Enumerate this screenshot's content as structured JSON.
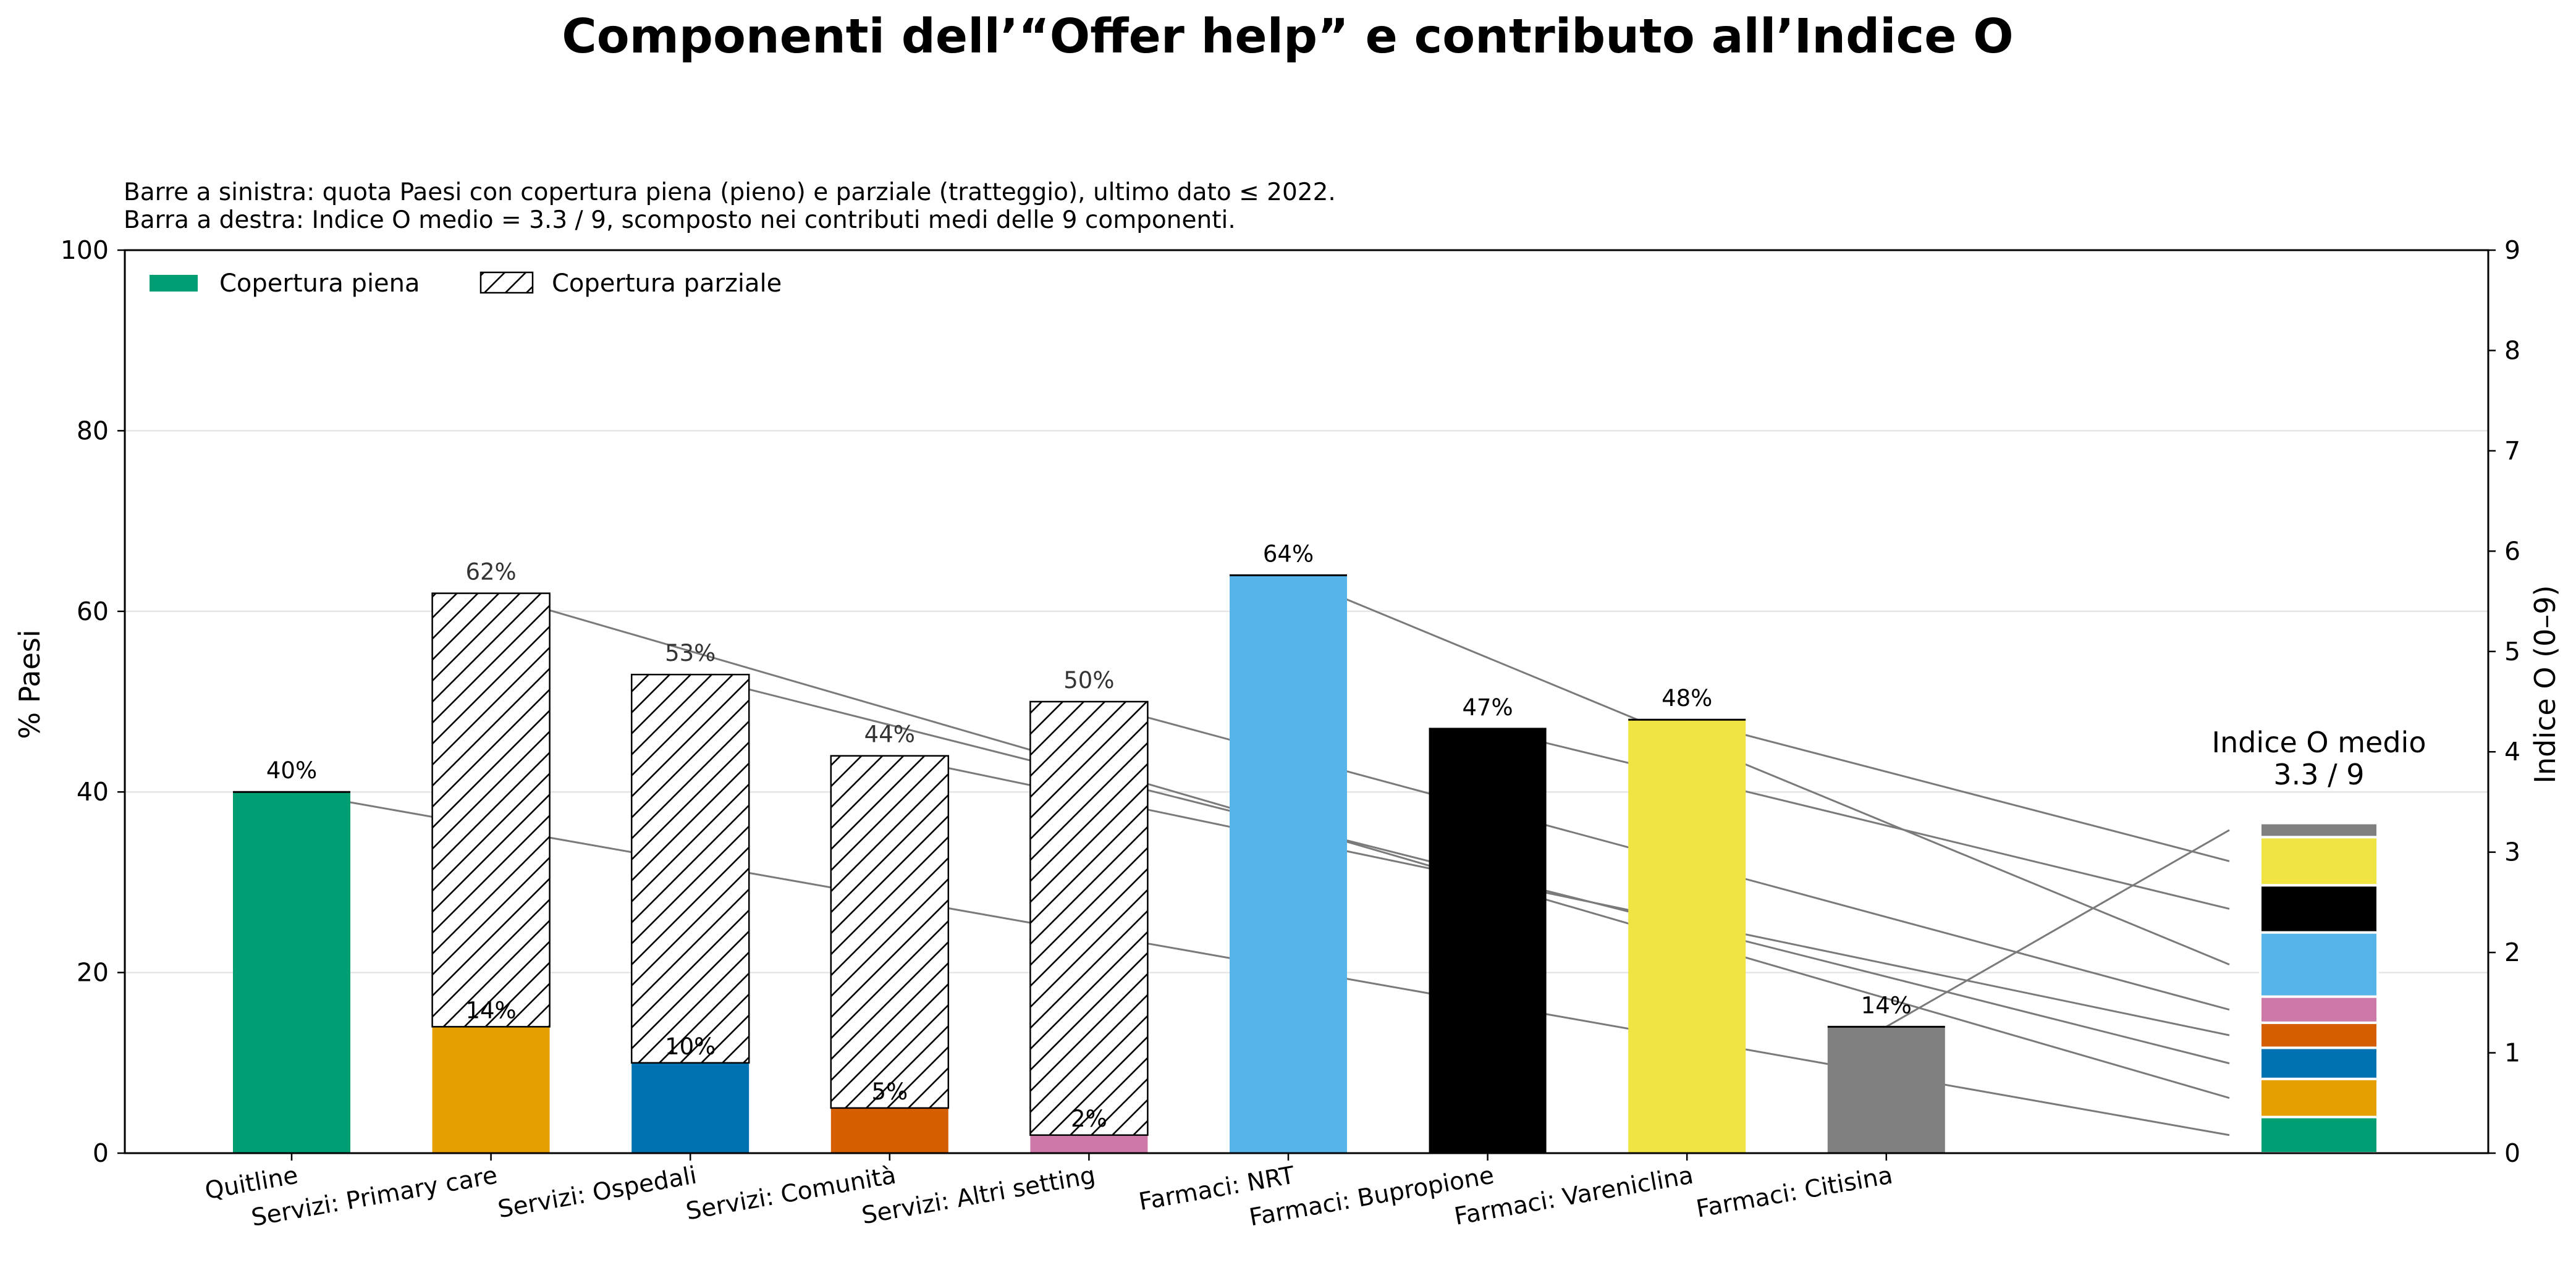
{
  "chart_data": {
    "type": "bar",
    "title": "Componenti dell’“Offer help” e contributo all’Indice O",
    "subtitle_lines": [
      "Barre a sinistra: quota Paesi con copertura piena (pieno) e parziale (tratteggio), ultimo dato ≤ 2022.",
      "Barra a destra: Indice O medio = 3.3 / 9, scomposto nei contributi medi delle 9 componenti."
    ],
    "ylabel": "% Paesi",
    "y2label": "Indice O (0–9)",
    "ylim": [
      0,
      100
    ],
    "y2lim": [
      0,
      9
    ],
    "yticks": [
      0,
      20,
      40,
      60,
      80,
      100
    ],
    "y2ticks": [
      0,
      1,
      2,
      3,
      4,
      5,
      6,
      7,
      8,
      9
    ],
    "grid": "horizontal",
    "legend": {
      "placement": "top-left",
      "entries": [
        {
          "label": "Copertura piena",
          "style": "solid",
          "color": "#009E73"
        },
        {
          "label": "Copertura parziale",
          "style": "hatched",
          "color": "#ffffff"
        }
      ]
    },
    "categories": [
      {
        "label": "Quitline",
        "color": "#009E73",
        "full": 40,
        "total": 40,
        "full_label": "40%",
        "total_label": "",
        "contribution": 0.36
      },
      {
        "label": "Servizi: Primary care",
        "color": "#E69F00",
        "full": 14,
        "total": 62,
        "full_label": "14%",
        "total_label": "62%",
        "contribution": 0.38
      },
      {
        "label": "Servizi: Ospedali",
        "color": "#0072B2",
        "full": 10,
        "total": 53,
        "full_label": "10%",
        "total_label": "53%",
        "contribution": 0.31
      },
      {
        "label": "Servizi: Comunità",
        "color": "#D55E00",
        "full": 5,
        "total": 44,
        "full_label": "5%",
        "total_label": "44%",
        "contribution": 0.25
      },
      {
        "label": "Servizi: Altri setting",
        "color": "#CC79A7",
        "full": 2,
        "total": 50,
        "full_label": "2%",
        "total_label": "50%",
        "contribution": 0.26
      },
      {
        "label": "Farmaci: NRT",
        "color": "#56B4E9",
        "full": 64,
        "total": 64,
        "full_label": "64%",
        "total_label": "",
        "contribution": 0.64
      },
      {
        "label": "Farmaci: Bupropione",
        "color": "#000000",
        "full": 47,
        "total": 47,
        "full_label": "47%",
        "total_label": "",
        "contribution": 0.47
      },
      {
        "label": "Farmaci: Vareniclina",
        "color": "#F0E442",
        "full": 48,
        "total": 48,
        "full_label": "48%",
        "total_label": "",
        "contribution": 0.48
      },
      {
        "label": "Farmaci: Citisina",
        "color": "#808080",
        "full": 14,
        "total": 14,
        "full_label": "14%",
        "total_label": "",
        "contribution": 0.14
      }
    ],
    "stack": {
      "title_lines": [
        "Indice O medio",
        "3.3 / 9"
      ],
      "total": 3.3
    }
  }
}
